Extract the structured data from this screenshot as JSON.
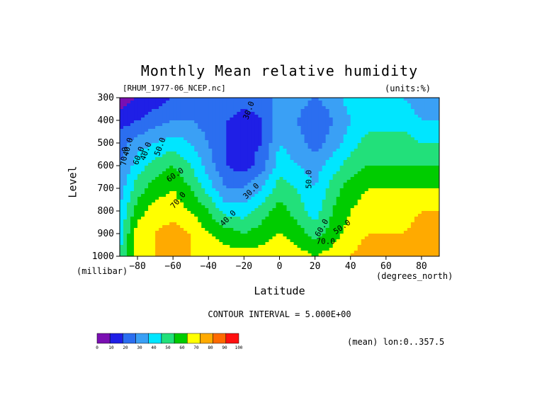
{
  "chart": {
    "title": "Monthly Mean relative humidity",
    "file_label": "[RHUM_1977-06_NCEP.nc]",
    "units_label": "(units:%)",
    "ylabel": "Level",
    "yunit": "(millibar)",
    "xlabel": "Latitude",
    "xunit": "(degrees_north)",
    "contour_interval": "CONTOUR INTERVAL = 5.000E+00",
    "note": "(mean) lon:0..357.5"
  },
  "chart_data": {
    "type": "heatmap",
    "title": "Monthly Mean relative humidity",
    "xlabel": "Latitude",
    "ylabel": "Level",
    "x_unit": "degrees_north",
    "y_unit": "millibar",
    "xlim": [
      -90,
      90
    ],
    "ylim": [
      1000,
      300
    ],
    "x_ticks": [
      -80,
      -60,
      -40,
      -20,
      0,
      20,
      40,
      60,
      80
    ],
    "y_ticks": [
      300,
      400,
      500,
      600,
      700,
      800,
      900,
      1000
    ],
    "contour_labels": [
      "30.0",
      "40.0",
      "40.0",
      "50.0",
      "60.0",
      "70.0",
      "30.0",
      "40.0",
      "50.0",
      "60.0",
      "70.0",
      "50.0",
      "60.0",
      "70.0"
    ],
    "colorbar": {
      "ticks": [
        "0",
        "10",
        "20",
        "30",
        "40",
        "50",
        "60",
        "70",
        "80",
        "90",
        "100"
      ],
      "colors": [
        "#7a0fb2",
        "#1f1fe6",
        "#2b6ef0",
        "#3aa0f5",
        "#00e6ff",
        "#22e07a",
        "#00cc00",
        "#ffff00",
        "#ffaa00",
        "#ff6a00",
        "#ff1010"
      ]
    },
    "x": [
      -90,
      -80,
      -70,
      -60,
      -50,
      -40,
      -30,
      -20,
      -10,
      0,
      10,
      20,
      30,
      40,
      50,
      60,
      70,
      80,
      90
    ],
    "y": [
      300,
      400,
      500,
      600,
      700,
      800,
      900,
      1000
    ],
    "values": [
      [
        5,
        10,
        15,
        20,
        25,
        25,
        30,
        25,
        25,
        35,
        35,
        30,
        35,
        45,
        50,
        45,
        40,
        35,
        35
      ],
      [
        15,
        20,
        25,
        30,
        30,
        25,
        20,
        15,
        20,
        35,
        30,
        20,
        30,
        40,
        45,
        45,
        45,
        40,
        40
      ],
      [
        25,
        35,
        40,
        45,
        40,
        30,
        20,
        15,
        20,
        40,
        35,
        25,
        35,
        45,
        55,
        55,
        55,
        50,
        50
      ],
      [
        30,
        45,
        55,
        60,
        50,
        35,
        20,
        15,
        25,
        45,
        40,
        35,
        45,
        55,
        60,
        60,
        60,
        60,
        60
      ],
      [
        35,
        55,
        65,
        70,
        60,
        45,
        30,
        30,
        40,
        55,
        50,
        40,
        55,
        65,
        70,
        70,
        70,
        70,
        70
      ],
      [
        40,
        65,
        75,
        75,
        70,
        60,
        45,
        45,
        55,
        65,
        55,
        45,
        60,
        70,
        75,
        75,
        75,
        80,
        80
      ],
      [
        45,
        75,
        80,
        85,
        80,
        70,
        65,
        60,
        65,
        70,
        65,
        55,
        65,
        75,
        80,
        80,
        80,
        85,
        85
      ],
      [
        50,
        75,
        80,
        80,
        80,
        80,
        75,
        75,
        75,
        80,
        75,
        70,
        75,
        80,
        85,
        85,
        85,
        90,
        90
      ]
    ]
  }
}
